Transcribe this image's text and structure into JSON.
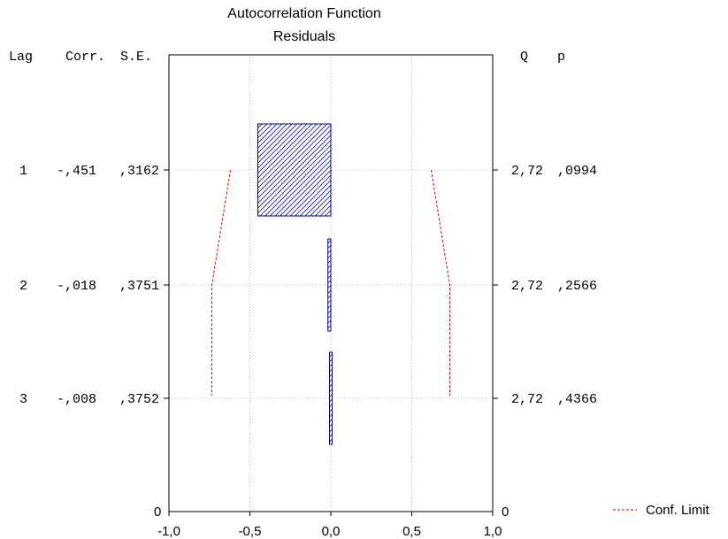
{
  "chart_data": {
    "type": "bar",
    "orientation": "horizontal",
    "title": "Autocorrelation Function",
    "subtitle": "Residuals",
    "columns": {
      "lag": "Lag",
      "corr": "Corr.",
      "se": "S.E.",
      "q": "Q",
      "p": "p"
    },
    "rows": [
      {
        "lag": "1",
        "corr": -0.451,
        "corr_label": "-,451",
        "se_label": ",3162",
        "q_label": "2,72",
        "p_label": ",0994",
        "conf_limit": 0.62
      },
      {
        "lag": "2",
        "corr": -0.018,
        "corr_label": "-,018",
        "se_label": ",3751",
        "q_label": "2,72",
        "p_label": ",2566",
        "conf_limit": 0.735
      },
      {
        "lag": "3",
        "corr": -0.008,
        "corr_label": "-,008",
        "se_label": ",3752",
        "q_label": "2,72",
        "p_label": ",4366",
        "conf_limit": 0.735
      }
    ],
    "xlim": [
      -1.0,
      1.0
    ],
    "xticks": [
      "-1,0",
      "-0,5",
      "0,0",
      "0,5",
      "1,0"
    ],
    "xtick_values": [
      -1.0,
      -0.5,
      0.0,
      0.5,
      1.0
    ],
    "ylim_label_left": "0",
    "ylim_label_right": "0",
    "grid": true,
    "legend": {
      "label": "Conf. Limit",
      "placement": "bottom-right"
    },
    "colors": {
      "bar": "#00008b",
      "conf_limit": "#cc0000",
      "grid": "#bbbbbb",
      "frame": "#000000"
    }
  }
}
